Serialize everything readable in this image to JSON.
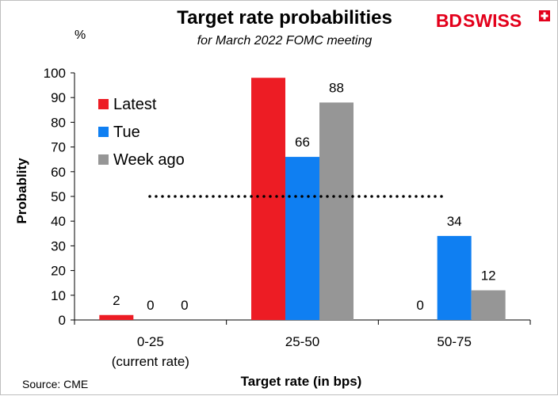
{
  "brand": {
    "text": "BDSWISS",
    "part1": "BD",
    "part2": "SWISS",
    "color": "#e3001b"
  },
  "source": "Source: CME",
  "chart_data": {
    "type": "bar",
    "title": "Target rate probabilities",
    "subtitle": "for March 2022 FOMC meeting",
    "unit": "%",
    "xlabel": "Target rate (in bps)",
    "ylabel": "Probablity",
    "ylim": [
      0,
      100
    ],
    "yticks": [
      0,
      10,
      20,
      30,
      40,
      50,
      60,
      70,
      80,
      90,
      100
    ],
    "categories": [
      "0-25",
      "25-50",
      "50-75"
    ],
    "category_sublabels": [
      "(current rate)",
      "",
      ""
    ],
    "series": [
      {
        "name": "Latest",
        "color": "#ed1c24",
        "values": [
          2,
          98,
          null
        ],
        "labels": [
          "2",
          "",
          "0"
        ]
      },
      {
        "name": "Tue",
        "color": "#0f7ff2",
        "values": [
          0,
          66,
          34
        ],
        "labels": [
          "0",
          "66",
          "34"
        ]
      },
      {
        "name": "Week ago",
        "color": "#969696",
        "values": [
          0,
          88,
          12
        ],
        "labels": [
          "0",
          "88",
          "12"
        ]
      }
    ],
    "reference_line": {
      "value": 50,
      "style": "dotted"
    },
    "legend_position": "top-left",
    "grid": false
  }
}
